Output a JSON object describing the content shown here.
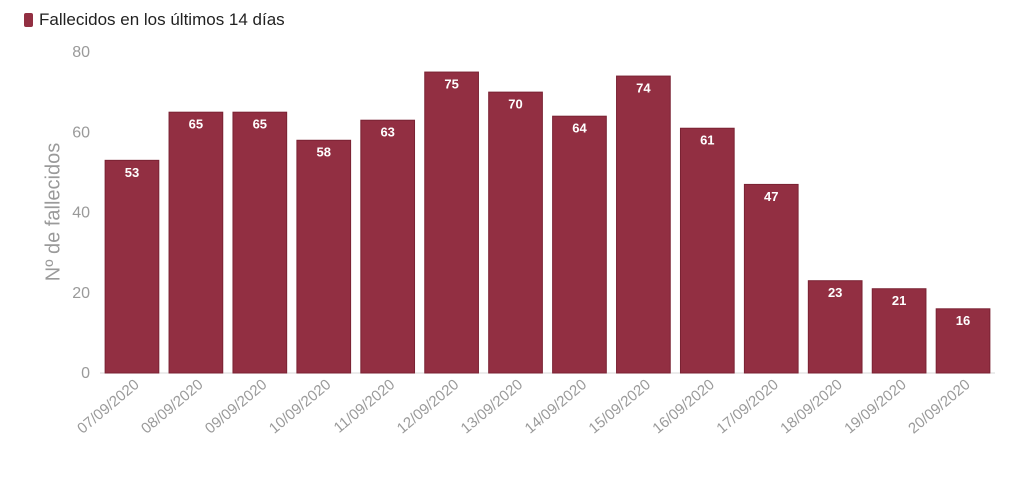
{
  "chart_data": {
    "type": "bar",
    "legend": {
      "label": "Fallecidos en los últimos 14 días",
      "position": "top-left"
    },
    "ylabel": "Nº de fallecidos",
    "xlabel": "",
    "ylim": [
      0,
      80
    ],
    "yticks": [
      "0",
      "20",
      "40",
      "60",
      "80"
    ],
    "grid": false,
    "categories": [
      "07/09/2020",
      "08/09/2020",
      "09/09/2020",
      "10/09/2020",
      "11/09/2020",
      "12/09/2020",
      "13/09/2020",
      "14/09/2020",
      "15/09/2020",
      "16/09/2020",
      "17/09/2020",
      "18/09/2020",
      "19/09/2020",
      "20/09/2020"
    ],
    "series": [
      {
        "name": "Fallecidos en los últimos 14 días",
        "values": [
          53,
          65,
          65,
          58,
          63,
          75,
          70,
          64,
          74,
          61,
          47,
          23,
          21,
          16
        ]
      }
    ],
    "colors": {
      "bar": "#922f42",
      "bar_border": "#7a2233",
      "label": "#ffffff",
      "axis_text": "#9a9a9a"
    }
  }
}
